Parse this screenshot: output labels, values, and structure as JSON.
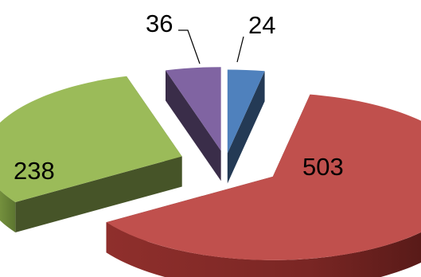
{
  "chart_data": {
    "type": "pie",
    "style": "3d-exploded",
    "legend": "none",
    "slices": [
      {
        "label": "24",
        "value": 24,
        "color": "#4F81BD"
      },
      {
        "label": "503",
        "value": 503,
        "color": "#C0504D"
      },
      {
        "label": "238",
        "value": 238,
        "color": "#9BBB59"
      },
      {
        "label": "36",
        "value": 36,
        "color": "#8064A2"
      }
    ]
  }
}
